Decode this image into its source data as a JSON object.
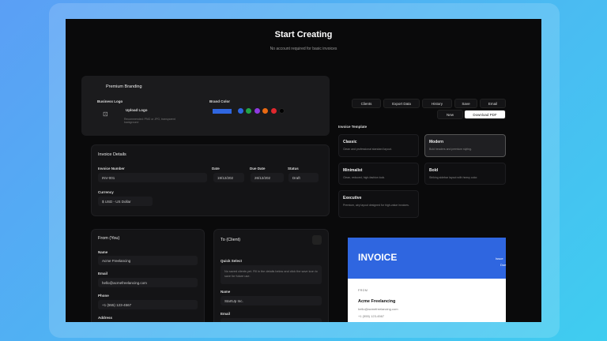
{
  "header": {
    "title": "Start Creating",
    "subtitle": "No account required for basic invoices"
  },
  "branding": {
    "title": "Premium Branding",
    "logo_label": "Business Logo",
    "upload_label": "Upload Logo",
    "upload_hint": "Recommended: PNG or JPG, transparent background",
    "color_label": "Brand Color",
    "selected_color": "#2f66e0",
    "swatches": [
      "#2f66e0",
      "#22a447",
      "#8e3ae0",
      "#ea6a12",
      "#e0282e",
      "#000000"
    ]
  },
  "details": {
    "title": "Invoice Details",
    "number_label": "Invoice Number",
    "number": "INV-001",
    "date_label": "Date",
    "date": "19/12/202",
    "due_label": "Due Date",
    "due": "26/12/202",
    "status_label": "Status",
    "status": "Draft",
    "currency_label": "Currency",
    "currency": "$ USD - US Dollar"
  },
  "from": {
    "title": "From (You)",
    "name_label": "Name",
    "name": "Acme Freelancing",
    "email_label": "Email",
    "email": "hello@acmefreelancing.com",
    "phone_label": "Phone",
    "phone": "+1 (555) 123-4567",
    "address_label": "Address"
  },
  "to": {
    "title": "To (Client)",
    "quick_label": "Quick Select",
    "quick_text": "No saved clients yet. Fill in the details below and click the save icon to save for future use.",
    "name_label": "Name",
    "name": "StartUp Inc.",
    "email_label": "Email"
  },
  "toolbar": {
    "clients": "Clients",
    "export": "Export Data",
    "history": "History",
    "save": "Save",
    "email": "Email",
    "new": "New",
    "download": "Download PDF"
  },
  "templates": {
    "title": "Invoice Template",
    "items": [
      {
        "name": "Classic",
        "desc": "Clean and professional standard layout."
      },
      {
        "name": "Modern",
        "desc": "Bold headers and premium styling.",
        "selected": true
      },
      {
        "name": "Minimalist",
        "desc": "Clean, reduced, high-fashion look."
      },
      {
        "name": "Bold",
        "desc": "Striking sidebar layout with heavy color."
      },
      {
        "name": "Executive",
        "desc": "Premium, airy layout designed for high-value invoices."
      }
    ]
  },
  "preview": {
    "title": "INVOICE",
    "meta1": "Issue",
    "meta2": "Due",
    "from_label": "FROM",
    "from_name": "Acme Freelancing",
    "from_email": "hello@acmefreelancing.com",
    "from_phone": "+1 (555) 123-4567",
    "accent": "#2f66e0"
  }
}
